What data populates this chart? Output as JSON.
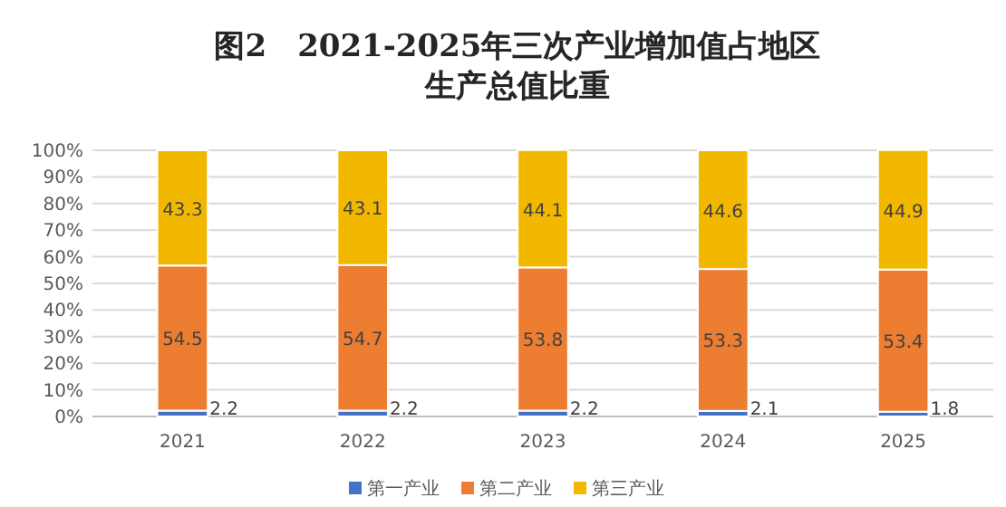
{
  "chart_data": {
    "type": "bar",
    "stacked": true,
    "title": "图2　2021-2025年三次产业增加值占地区生产总值比重",
    "categories": [
      "2021",
      "2022",
      "2023",
      "2024",
      "2025"
    ],
    "series": [
      {
        "name": "第一产业",
        "color": "#4472c4",
        "values": [
          2.2,
          2.2,
          2.2,
          2.1,
          1.8
        ]
      },
      {
        "name": "第二产业",
        "color": "#ed7d31",
        "values": [
          54.5,
          54.7,
          53.8,
          53.3,
          53.4
        ]
      },
      {
        "name": "第三产业",
        "color": "#f2b800",
        "values": [
          43.3,
          43.1,
          44.1,
          44.6,
          44.9
        ]
      }
    ],
    "ylim": [
      0,
      100
    ],
    "yticks": [
      {
        "value": 0,
        "label": "0%"
      },
      {
        "value": 10,
        "label": "10%"
      },
      {
        "value": 20,
        "label": "20%"
      },
      {
        "value": 30,
        "label": "30%"
      },
      {
        "value": 40,
        "label": "40%"
      },
      {
        "value": 50,
        "label": "50%"
      },
      {
        "value": 60,
        "label": "60%"
      },
      {
        "value": 70,
        "label": "70%"
      },
      {
        "value": 80,
        "label": "80%"
      },
      {
        "value": 90,
        "label": "90%"
      },
      {
        "value": 100,
        "label": "100%"
      }
    ],
    "grid": "y",
    "legend": "bottom",
    "data_labels": true
  }
}
